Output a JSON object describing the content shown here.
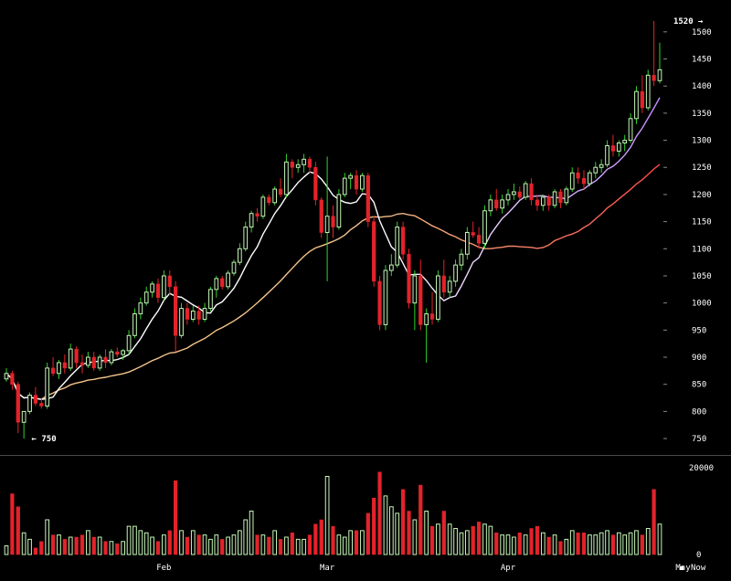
{
  "colors": {
    "background": "#000000",
    "up": "#c6f7b8",
    "up_stroke": "#35d02f",
    "down": "#e3232b",
    "ma_fast": "#ffffff",
    "ma_fast_end": "#c58cff",
    "ma_slow": "#f3c38b",
    "ma_slow_end": "#ff4a4a",
    "axis_text": "#ffffff",
    "separator": "#4a4a4a"
  },
  "chart_data": {
    "type": "candlestick",
    "price_range": [
      740,
      1525
    ],
    "volume_range": [
      0,
      20000
    ],
    "y_ticks": [
      750,
      800,
      850,
      900,
      950,
      1000,
      1050,
      1100,
      1150,
      1200,
      1250,
      1300,
      1350,
      1400,
      1450,
      1500
    ],
    "volume_ticks": [
      0,
      20000
    ],
    "x_labels": [
      {
        "label": "Feb",
        "index": 27
      },
      {
        "label": "Mar",
        "index": 55
      },
      {
        "label": "Apr",
        "index": 86
      },
      {
        "label": "May",
        "index": 116
      }
    ],
    "annotations": [
      {
        "text": "1520",
        "value": 1520,
        "index": 121,
        "side": "left"
      },
      {
        "text": "750",
        "value": 750,
        "index": 4,
        "side": "right"
      }
    ],
    "ohlcv": [
      [
        860,
        880,
        855,
        870,
        2000
      ],
      [
        870,
        875,
        840,
        850,
        14000
      ],
      [
        850,
        855,
        760,
        780,
        11000
      ],
      [
        780,
        790,
        750,
        800,
        5000
      ],
      [
        800,
        835,
        795,
        830,
        3500
      ],
      [
        830,
        845,
        810,
        815,
        1500
      ],
      [
        815,
        825,
        805,
        810,
        3000
      ],
      [
        810,
        890,
        805,
        880,
        8000
      ],
      [
        880,
        900,
        865,
        870,
        4500
      ],
      [
        870,
        895,
        860,
        890,
        4500
      ],
      [
        890,
        905,
        870,
        880,
        3500
      ],
      [
        880,
        925,
        875,
        915,
        4000
      ],
      [
        915,
        920,
        880,
        890,
        4000
      ],
      [
        890,
        905,
        870,
        885,
        4500
      ],
      [
        885,
        910,
        880,
        900,
        5500
      ],
      [
        900,
        910,
        875,
        880,
        4000
      ],
      [
        880,
        905,
        875,
        900,
        4000
      ],
      [
        900,
        915,
        880,
        890,
        3000
      ],
      [
        890,
        915,
        885,
        910,
        3000
      ],
      [
        910,
        918,
        900,
        905,
        2500
      ],
      [
        905,
        915,
        895,
        912,
        3000
      ],
      [
        912,
        950,
        905,
        940,
        6500
      ],
      [
        940,
        990,
        935,
        980,
        6500
      ],
      [
        980,
        1010,
        970,
        1000,
        5500
      ],
      [
        1000,
        1030,
        995,
        1020,
        5000
      ],
      [
        1020,
        1040,
        1010,
        1035,
        4000
      ],
      [
        1035,
        1045,
        1000,
        1010,
        3000
      ],
      [
        1010,
        1060,
        1005,
        1050,
        4500
      ],
      [
        1050,
        1060,
        1015,
        1030,
        5500
      ],
      [
        1030,
        1040,
        910,
        940,
        17000
      ],
      [
        940,
        1000,
        935,
        990,
        5500
      ],
      [
        990,
        1000,
        960,
        970,
        4000
      ],
      [
        970,
        995,
        965,
        985,
        5500
      ],
      [
        985,
        995,
        960,
        970,
        4500
      ],
      [
        970,
        1000,
        965,
        990,
        4500
      ],
      [
        990,
        1030,
        985,
        1025,
        3500
      ],
      [
        1025,
        1050,
        1010,
        1045,
        4500
      ],
      [
        1045,
        1050,
        1025,
        1030,
        3500
      ],
      [
        1030,
        1060,
        1025,
        1055,
        4000
      ],
      [
        1055,
        1080,
        1050,
        1075,
        4500
      ],
      [
        1075,
        1110,
        1070,
        1100,
        5500
      ],
      [
        1100,
        1150,
        1095,
        1140,
        8000
      ],
      [
        1140,
        1170,
        1130,
        1165,
        10000
      ],
      [
        1165,
        1175,
        1150,
        1160,
        4500
      ],
      [
        1160,
        1200,
        1155,
        1195,
        4500
      ],
      [
        1195,
        1200,
        1180,
        1185,
        4000
      ],
      [
        1185,
        1215,
        1180,
        1210,
        5500
      ],
      [
        1210,
        1230,
        1195,
        1200,
        3500
      ],
      [
        1200,
        1275,
        1195,
        1260,
        4000
      ],
      [
        1260,
        1265,
        1230,
        1250,
        5000
      ],
      [
        1250,
        1265,
        1240,
        1255,
        3500
      ],
      [
        1255,
        1275,
        1240,
        1265,
        3500
      ],
      [
        1265,
        1270,
        1240,
        1250,
        4500
      ],
      [
        1250,
        1260,
        1180,
        1190,
        7000
      ],
      [
        1190,
        1195,
        1120,
        1130,
        8000
      ],
      [
        1130,
        1270,
        1040,
        1160,
        18000
      ],
      [
        1160,
        1180,
        1120,
        1140,
        6500
      ],
      [
        1140,
        1210,
        1135,
        1200,
        4500
      ],
      [
        1200,
        1240,
        1195,
        1230,
        4000
      ],
      [
        1230,
        1240,
        1210,
        1235,
        5500
      ],
      [
        1235,
        1245,
        1200,
        1210,
        5500
      ],
      [
        1210,
        1240,
        1205,
        1235,
        5500
      ],
      [
        1235,
        1240,
        1140,
        1150,
        9500
      ],
      [
        1150,
        1160,
        1030,
        1040,
        13000
      ],
      [
        1040,
        1050,
        950,
        960,
        19000
      ],
      [
        960,
        1070,
        950,
        1060,
        13500
      ],
      [
        1060,
        1090,
        1050,
        1070,
        11000
      ],
      [
        1070,
        1150,
        1065,
        1140,
        9500
      ],
      [
        1140,
        1150,
        1080,
        1090,
        15000
      ],
      [
        1090,
        1100,
        990,
        1000,
        10000
      ],
      [
        1000,
        1060,
        950,
        1050,
        8000
      ],
      [
        1050,
        1080,
        950,
        960,
        16000
      ],
      [
        960,
        990,
        890,
        980,
        10000
      ],
      [
        980,
        1020,
        960,
        970,
        6500
      ],
      [
        970,
        1060,
        965,
        1050,
        7000
      ],
      [
        1050,
        1080,
        1010,
        1020,
        10000
      ],
      [
        1020,
        1050,
        1010,
        1040,
        7000
      ],
      [
        1040,
        1080,
        1030,
        1070,
        6000
      ],
      [
        1070,
        1100,
        1060,
        1090,
        5000
      ],
      [
        1090,
        1140,
        1080,
        1130,
        5500
      ],
      [
        1130,
        1150,
        1120,
        1125,
        6500
      ],
      [
        1125,
        1140,
        1100,
        1110,
        7500
      ],
      [
        1110,
        1180,
        1100,
        1170,
        7000
      ],
      [
        1170,
        1200,
        1160,
        1190,
        6500
      ],
      [
        1190,
        1210,
        1170,
        1175,
        5000
      ],
      [
        1175,
        1200,
        1165,
        1190,
        4500
      ],
      [
        1190,
        1210,
        1180,
        1200,
        4500
      ],
      [
        1200,
        1220,
        1190,
        1205,
        4000
      ],
      [
        1205,
        1215,
        1190,
        1195,
        5000
      ],
      [
        1195,
        1225,
        1190,
        1220,
        4500
      ],
      [
        1220,
        1230,
        1180,
        1190,
        6000
      ],
      [
        1190,
        1200,
        1170,
        1180,
        6500
      ],
      [
        1180,
        1200,
        1170,
        1195,
        5000
      ],
      [
        1195,
        1200,
        1170,
        1180,
        4000
      ],
      [
        1180,
        1210,
        1175,
        1205,
        4500
      ],
      [
        1205,
        1210,
        1175,
        1185,
        3000
      ],
      [
        1185,
        1215,
        1180,
        1210,
        3500
      ],
      [
        1210,
        1250,
        1205,
        1240,
        5500
      ],
      [
        1240,
        1250,
        1220,
        1230,
        5000
      ],
      [
        1230,
        1245,
        1210,
        1220,
        5000
      ],
      [
        1220,
        1245,
        1215,
        1240,
        4500
      ],
      [
        1240,
        1260,
        1230,
        1250,
        4500
      ],
      [
        1250,
        1265,
        1240,
        1255,
        5000
      ],
      [
        1255,
        1300,
        1250,
        1290,
        5500
      ],
      [
        1290,
        1310,
        1270,
        1280,
        4500
      ],
      [
        1280,
        1300,
        1270,
        1295,
        5000
      ],
      [
        1295,
        1310,
        1280,
        1300,
        4500
      ],
      [
        1300,
        1350,
        1295,
        1340,
        5000
      ],
      [
        1340,
        1400,
        1330,
        1390,
        5500
      ],
      [
        1390,
        1420,
        1350,
        1360,
        4500
      ],
      [
        1360,
        1430,
        1355,
        1420,
        6000
      ],
      [
        1420,
        1520,
        1400,
        1410,
        15000
      ],
      [
        1410,
        1480,
        1405,
        1430,
        7000
      ]
    ]
  },
  "ui": {
    "now_label": "Now"
  }
}
